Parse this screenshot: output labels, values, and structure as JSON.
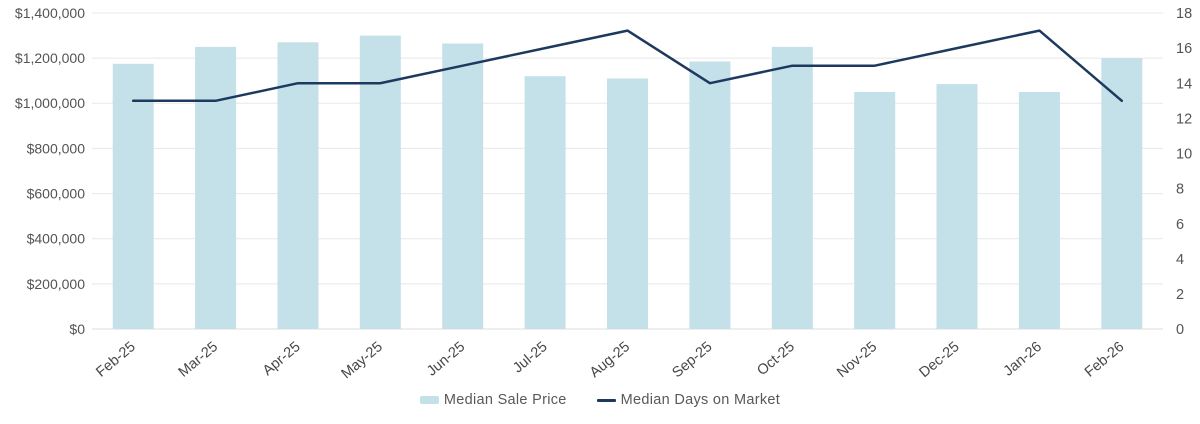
{
  "chart_data": {
    "type": "combo",
    "title": "",
    "categories": [
      "Feb-25",
      "Mar-25",
      "Apr-25",
      "May-25",
      "Jun-25",
      "Jul-25",
      "Aug-25",
      "Sep-25",
      "Oct-25",
      "Nov-25",
      "Dec-25",
      "Jan-26",
      "Feb-26"
    ],
    "series": [
      {
        "name": "Median Sale Price",
        "type": "bar",
        "axis": "left",
        "values": [
          1175000,
          1250000,
          1270000,
          1300000,
          1265000,
          1120000,
          1110000,
          1185000,
          1250000,
          1050000,
          1085000,
          1050000,
          1200000
        ]
      },
      {
        "name": "Median Days on Market",
        "type": "line",
        "axis": "right",
        "values": [
          13,
          13,
          14,
          14,
          15,
          16,
          17,
          14,
          15,
          15,
          16,
          17,
          13
        ]
      }
    ],
    "left_axis": {
      "min": 0,
      "max": 1400000,
      "tick_step": 200000,
      "tick_labels": [
        "$0",
        "$200,000",
        "$400,000",
        "$600,000",
        "$800,000",
        "$1,000,000",
        "$1,200,000",
        "$1,400,000"
      ]
    },
    "right_axis": {
      "min": 0,
      "max": 18,
      "tick_step": 2,
      "tick_labels": [
        "0",
        "2",
        "4",
        "6",
        "8",
        "10",
        "12",
        "14",
        "16",
        "18"
      ]
    },
    "grid": "horizontal",
    "legend_position": "bottom",
    "colors": {
      "bar": "#c4e0e9",
      "line": "#1d3a5e",
      "grid": "#e8e8e8",
      "baseline": "#dddddd",
      "axis_text": "#545454",
      "category_text": "#474747",
      "legend_text": "#595959",
      "background": "#ffffff"
    }
  }
}
